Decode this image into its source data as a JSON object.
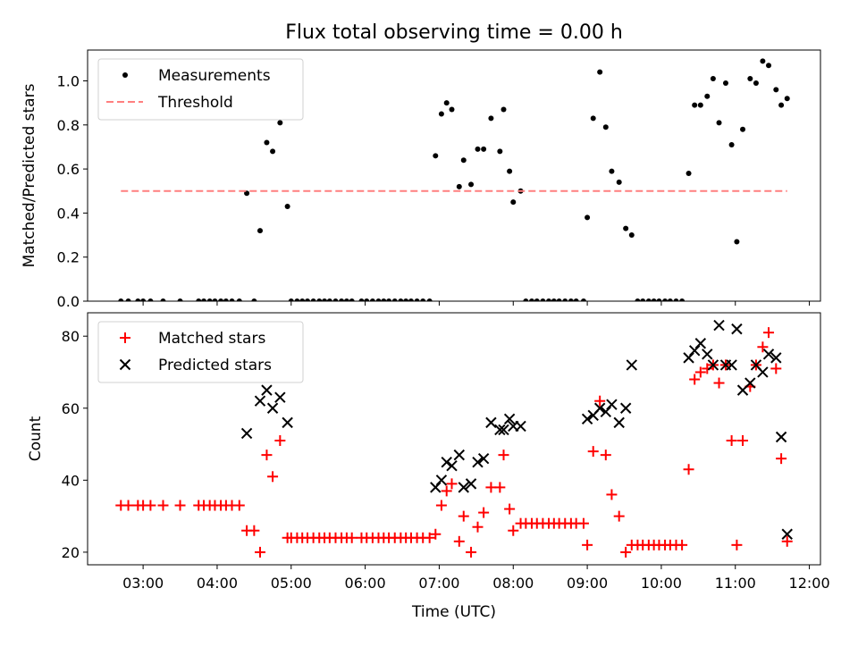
{
  "chart_data": {
    "type": "scatter",
    "title": "Flux total observing time = 0.00 h",
    "xlabel": "Time (UTC)",
    "x_ticks": [
      "03:00",
      "04:00",
      "05:00",
      "06:00",
      "07:00",
      "08:00",
      "09:00",
      "10:00",
      "11:00",
      "12:00"
    ],
    "x_tick_hours": [
      3,
      4,
      5,
      6,
      7,
      8,
      9,
      10,
      11,
      12
    ],
    "xlim": [
      2.25,
      12.15
    ],
    "panels": [
      {
        "ylabel": "Matched/Predicted stars",
        "ylim": [
          0,
          1.14
        ],
        "y_ticks": [
          0.0,
          0.2,
          0.4,
          0.6,
          0.8,
          1.0
        ],
        "y_tick_labels": [
          "0.0",
          "0.2",
          "0.4",
          "0.6",
          "0.8",
          "1.0"
        ],
        "legend_position": "upper-left",
        "series": [
          {
            "name": "Measurements",
            "marker": "dot",
            "color": "#000000",
            "x": [
              2.7,
              2.8,
              2.93,
              3.0,
              3.1,
              3.27,
              3.5,
              3.75,
              3.82,
              3.9,
              3.97,
              4.05,
              4.12,
              4.2,
              4.3,
              4.4,
              4.5,
              4.58,
              4.67,
              4.75,
              4.85,
              4.95,
              5.0,
              5.08,
              5.15,
              5.22,
              5.3,
              5.38,
              5.45,
              5.52,
              5.6,
              5.68,
              5.75,
              5.82,
              5.95,
              6.02,
              6.1,
              6.18,
              6.25,
              6.32,
              6.4,
              6.48,
              6.55,
              6.62,
              6.7,
              6.78,
              6.87,
              6.95,
              7.03,
              7.1,
              7.17,
              7.27,
              7.33,
              7.43,
              7.52,
              7.6,
              7.7,
              7.82,
              7.87,
              7.95,
              8.0,
              8.1,
              8.17,
              8.25,
              8.32,
              8.4,
              8.48,
              8.55,
              8.62,
              8.7,
              8.78,
              8.85,
              8.95,
              9.0,
              9.08,
              9.17,
              9.25,
              9.33,
              9.43,
              9.52,
              9.6,
              9.68,
              9.75,
              9.83,
              9.9,
              9.97,
              10.05,
              10.12,
              10.2,
              10.28,
              10.37,
              10.45,
              10.53,
              10.62,
              10.7,
              10.78,
              10.87,
              10.95,
              11.02,
              11.1,
              11.2,
              11.28,
              11.37,
              11.45,
              11.55,
              11.62,
              11.7
            ],
            "y": [
              0,
              0,
              0,
              0,
              0,
              0,
              0,
              0,
              0,
              0,
              0,
              0,
              0,
              0,
              0,
              0.49,
              0,
              0.32,
              0.72,
              0.68,
              0.81,
              0.43,
              0,
              0,
              0,
              0,
              0,
              0,
              0,
              0,
              0,
              0,
              0,
              0,
              0,
              0,
              0,
              0,
              0,
              0,
              0,
              0,
              0,
              0,
              0,
              0,
              0,
              0.66,
              0.85,
              0.9,
              0.87,
              0.52,
              0.64,
              0.53,
              0.69,
              0.69,
              0.83,
              0.68,
              0.87,
              0.59,
              0.45,
              0.5,
              0,
              0,
              0,
              0,
              0,
              0,
              0,
              0,
              0,
              0,
              0,
              0.38,
              0.83,
              1.04,
              0.79,
              0.59,
              0.54,
              0.33,
              0.3,
              0,
              0,
              0,
              0,
              0,
              0,
              0,
              0,
              0,
              0.58,
              0.89,
              0.89,
              0.93,
              1.01,
              0.81,
              0.99,
              0.71,
              0.27,
              0.78,
              1.01,
              0.99,
              1.09,
              1.07,
              0.96,
              0.89,
              0.92
            ]
          },
          {
            "name": "Threshold",
            "marker": "dashed-line",
            "color": "#ff7f7f",
            "x": [
              2.7,
              11.7
            ],
            "y": [
              0.5,
              0.5
            ]
          }
        ]
      },
      {
        "ylabel": "Count",
        "ylim": [
          16.5,
          86.5
        ],
        "y_ticks": [
          20,
          40,
          60,
          80
        ],
        "y_tick_labels": [
          "20",
          "40",
          "60",
          "80"
        ],
        "legend_position": "upper-left",
        "series": [
          {
            "name": "Matched stars",
            "marker": "plus",
            "color": "#ff0000",
            "x": [
              2.7,
              2.8,
              2.93,
              3.0,
              3.1,
              3.27,
              3.5,
              3.75,
              3.82,
              3.9,
              3.97,
              4.05,
              4.12,
              4.2,
              4.3,
              4.4,
              4.5,
              4.58,
              4.67,
              4.75,
              4.85,
              4.95,
              5.0,
              5.08,
              5.15,
              5.22,
              5.3,
              5.38,
              5.45,
              5.52,
              5.6,
              5.68,
              5.75,
              5.82,
              5.95,
              6.02,
              6.1,
              6.18,
              6.25,
              6.32,
              6.4,
              6.48,
              6.55,
              6.62,
              6.7,
              6.78,
              6.87,
              6.95,
              7.03,
              7.1,
              7.17,
              7.27,
              7.33,
              7.43,
              7.52,
              7.6,
              7.7,
              7.82,
              7.87,
              7.95,
              8.0,
              8.1,
              8.17,
              8.25,
              8.32,
              8.4,
              8.48,
              8.55,
              8.62,
              8.7,
              8.78,
              8.85,
              8.95,
              9.0,
              9.08,
              9.17,
              9.25,
              9.33,
              9.43,
              9.52,
              9.6,
              9.68,
              9.75,
              9.83,
              9.9,
              9.97,
              10.05,
              10.12,
              10.2,
              10.28,
              10.37,
              10.45,
              10.53,
              10.62,
              10.7,
              10.78,
              10.87,
              10.95,
              11.02,
              11.1,
              11.2,
              11.28,
              11.37,
              11.45,
              11.55,
              11.62,
              11.7
            ],
            "y": [
              33,
              33,
              33,
              33,
              33,
              33,
              33,
              33,
              33,
              33,
              33,
              33,
              33,
              33,
              33,
              26,
              26,
              20,
              47,
              41,
              51,
              24,
              24,
              24,
              24,
              24,
              24,
              24,
              24,
              24,
              24,
              24,
              24,
              24,
              24,
              24,
              24,
              24,
              24,
              24,
              24,
              24,
              24,
              24,
              24,
              24,
              24,
              25,
              33,
              37,
              39,
              23,
              30,
              20,
              27,
              31,
              38,
              38,
              47,
              32,
              26,
              28,
              28,
              28,
              28,
              28,
              28,
              28,
              28,
              28,
              28,
              28,
              28,
              22,
              48,
              62,
              47,
              36,
              30,
              20,
              22,
              22,
              22,
              22,
              22,
              22,
              22,
              22,
              22,
              22,
              43,
              68,
              70,
              71,
              72,
              67,
              72,
              51,
              22,
              51,
              66,
              72,
              77,
              81,
              71,
              46,
              23
            ]
          },
          {
            "name": "Predicted stars",
            "marker": "x",
            "color": "#000000",
            "x": [
              4.4,
              4.58,
              4.67,
              4.75,
              4.85,
              4.95,
              6.95,
              7.03,
              7.1,
              7.17,
              7.27,
              7.33,
              7.43,
              7.52,
              7.6,
              7.7,
              7.82,
              7.87,
              7.95,
              8.0,
              8.1,
              9.0,
              9.08,
              9.17,
              9.25,
              9.33,
              9.43,
              9.52,
              9.6,
              10.37,
              10.45,
              10.53,
              10.62,
              10.7,
              10.78,
              10.87,
              10.95,
              11.02,
              11.1,
              11.2,
              11.28,
              11.37,
              11.45,
              11.55,
              11.62,
              11.7
            ],
            "y": [
              53,
              62,
              65,
              60,
              63,
              56,
              38,
              40,
              45,
              44,
              47,
              38,
              39,
              45,
              46,
              56,
              54,
              54,
              57,
              55,
              55,
              57,
              58,
              60,
              59,
              61,
              56,
              60,
              72,
              74,
              76,
              78,
              75,
              72,
              83,
              72,
              72,
              82,
              65,
              67,
              72,
              70,
              75,
              74,
              52,
              25
            ]
          }
        ]
      }
    ]
  }
}
